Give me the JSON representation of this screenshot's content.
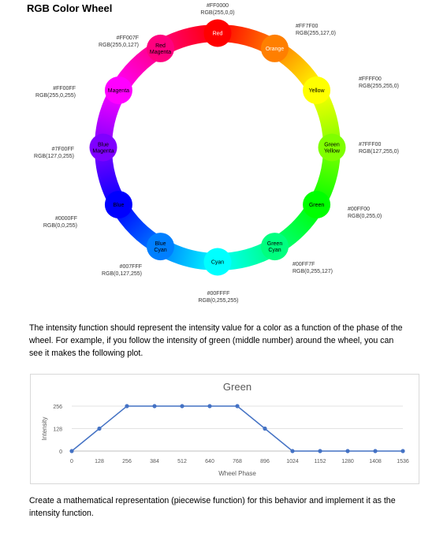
{
  "page_title": "RGB Color Wheel",
  "wheel": {
    "nodes": [
      {
        "id": "red",
        "label": [
          "Red"
        ],
        "fill": "#ff0000",
        "text_color": "#ffffff",
        "hex": "#FF0000",
        "rgb": "RGB(255,0,0)"
      },
      {
        "id": "orange",
        "label": [
          "Orange"
        ],
        "fill": "#ff7f00",
        "text_color": "#ffffff",
        "hex": "#FF7F00",
        "rgb": "RGB(255,127,0)"
      },
      {
        "id": "yellow",
        "label": [
          "Yellow"
        ],
        "fill": "#ffff00",
        "text_color": "#000000",
        "hex": "#FFFF00",
        "rgb": "RGB(255,255,0)"
      },
      {
        "id": "green-yellow",
        "label": [
          "Green",
          "Yellow"
        ],
        "fill": "#7fff00",
        "text_color": "#000000",
        "hex": "#7FFF00",
        "rgb": "RGB(127,255,0)"
      },
      {
        "id": "green",
        "label": [
          "Green"
        ],
        "fill": "#00ff00",
        "text_color": "#000000",
        "hex": "#00FF00",
        "rgb": "RGB(0,255,0)"
      },
      {
        "id": "green-cyan",
        "label": [
          "Green",
          "Cyan"
        ],
        "fill": "#00ff7f",
        "text_color": "#000000",
        "hex": "#00FF7F",
        "rgb": "RGB(0,255,127)"
      },
      {
        "id": "cyan",
        "label": [
          "Cyan"
        ],
        "fill": "#00ffff",
        "text_color": "#000000",
        "hex": "#00FFFF",
        "rgb": "RGB(0,255,255)"
      },
      {
        "id": "blue-cyan",
        "label": [
          "Blue",
          "Cyan"
        ],
        "fill": "#007fff",
        "text_color": "#000000",
        "hex": "#007FFF",
        "rgb": "RGB(0,127,255)"
      },
      {
        "id": "blue",
        "label": [
          "Blue"
        ],
        "fill": "#0000ff",
        "text_color": "#000000",
        "hex": "#0000FF",
        "rgb": "RGB(0,0,255)"
      },
      {
        "id": "blue-magenta",
        "label": [
          "Blue",
          "Magenta"
        ],
        "fill": "#7f00ff",
        "text_color": "#000000",
        "hex": "#7F00FF",
        "rgb": "RGB(127,0,255)"
      },
      {
        "id": "magenta",
        "label": [
          "Magenta"
        ],
        "fill": "#ff00ff",
        "text_color": "#000000",
        "hex": "#FF00FF",
        "rgb": "RGB(255,0,255)"
      },
      {
        "id": "red-magenta",
        "label": [
          "Red",
          "Magenta"
        ],
        "fill": "#ff007f",
        "text_color": "#000000",
        "hex": "#FF007F",
        "rgb": "RGB(255,0,127)"
      }
    ]
  },
  "paragraph1": "The intensity function should represent the intensity value for a color as a function of the phase of the wheel. For example, if you follow the intensity of green (middle number) around the wheel, you can see it makes the following plot.",
  "chart_data": {
    "type": "line",
    "title": "Green",
    "xlabel": "Wheel Phase",
    "ylabel": "Intensity",
    "x": [
      0,
      128,
      256,
      384,
      512,
      640,
      768,
      896,
      1024,
      1152,
      1280,
      1408,
      1536
    ],
    "series": [
      {
        "values": [
          0,
          128,
          256,
          256,
          256,
          256,
          256,
          128,
          0,
          0,
          0,
          0,
          0
        ]
      }
    ],
    "xticks": [
      "0",
      "128",
      "256",
      "384",
      "512",
      "640",
      "768",
      "896",
      "1024",
      "1152",
      "1280",
      "1408",
      "1536"
    ],
    "yticks": [
      "0",
      "128",
      "256"
    ],
    "xlim": [
      0,
      1536
    ],
    "ylim": [
      0,
      256
    ],
    "grid": true,
    "line_color": "#4472c4"
  },
  "paragraph2": "Create a mathematical representation (piecewise function) for this behavior and implement it as the intensity function."
}
